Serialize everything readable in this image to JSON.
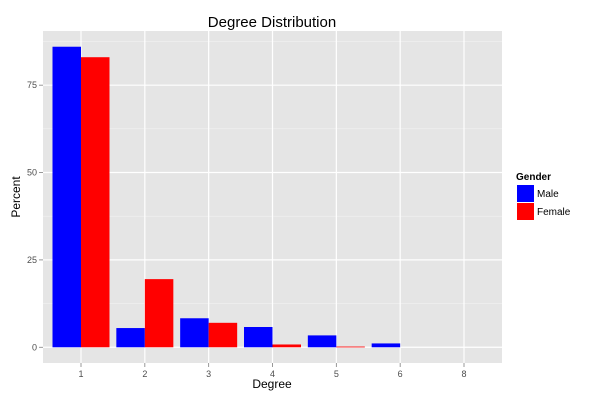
{
  "chart_data": {
    "type": "bar",
    "title": "Degree Distribution",
    "xlabel": "Degree",
    "ylabel": "Percent",
    "categories": [
      "1",
      "2",
      "3",
      "4",
      "5",
      "6",
      "8"
    ],
    "series": [
      {
        "name": "Male",
        "color": "#0000ff",
        "values": [
          86.0,
          5.5,
          8.3,
          5.8,
          3.4,
          1.1,
          0
        ]
      },
      {
        "name": "Female",
        "color": "#ff0000",
        "values": [
          83.0,
          19.5,
          7.0,
          0.8,
          0.2,
          0,
          0
        ]
      }
    ],
    "y_ticks": [
      0,
      25,
      50,
      75
    ],
    "ylim": [
      -4.5,
      90.5
    ],
    "grid": true,
    "legend": {
      "title": "Gender",
      "placement": "right"
    },
    "panel_color": "#e5e5e5"
  }
}
